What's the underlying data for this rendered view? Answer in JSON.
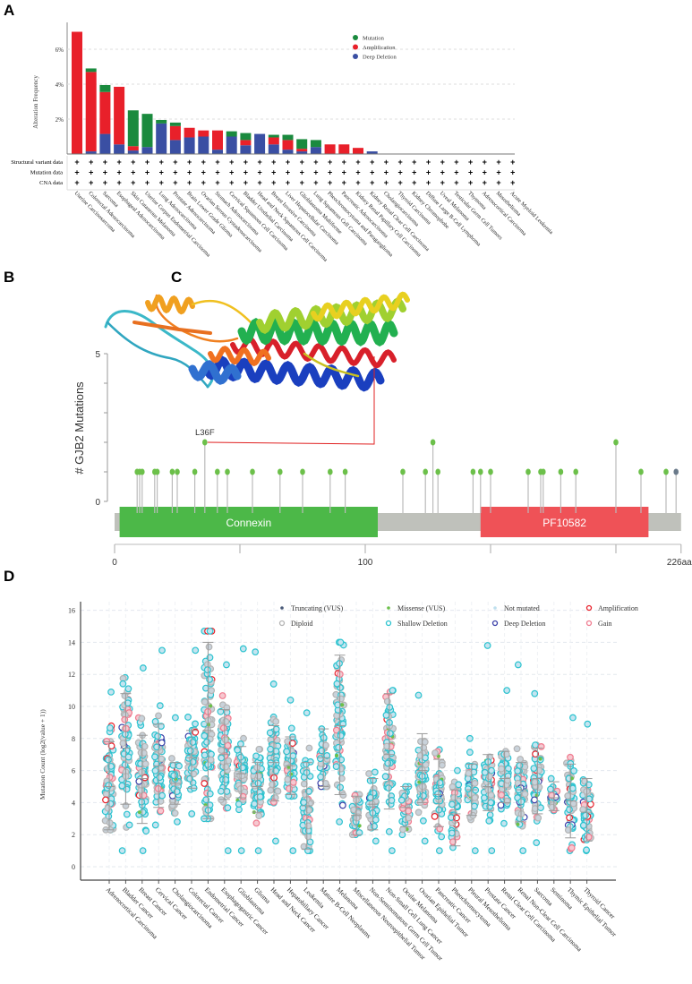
{
  "panels": {
    "a": "A",
    "b": "B",
    "c": "C",
    "d": "D"
  },
  "chart_data": [
    {
      "panel": "A",
      "type": "bar",
      "stacked": true,
      "ylabel": "Alteration Frequency",
      "ylim": [
        0,
        7.2
      ],
      "yticks": [
        "2%",
        "4%",
        "6%"
      ],
      "ytick_values": [
        2,
        4,
        6
      ],
      "grid": true,
      "legend_position": "top-right",
      "categories": [
        "Uterine Carcinosarcoma",
        "Colorectal Adenocarcinoma",
        "Sarcoma",
        "Esophageal Adenocarcinoma",
        "Skin Cutaneous Melanoma",
        "Uterine Corpus Endometrial Carcinoma",
        "Lung Adenocarcinoma",
        "Prostate Adenocarcinoma",
        "Brain Lower Grade Glioma",
        "Ovarian Serous Cystadenocarcinoma",
        "Stomach Adenocarcinoma",
        "Cervical Squamous Cell Carcinoma",
        "Bladder Urothelial Carcinoma",
        "Head and Neck Squamous Cell Carcinoma",
        "Breast Invasive Carcinoma",
        "Liver Hepatocellular Carcinoma",
        "Glioblastoma Multiforme",
        "Lung Squamous Cell Carcinoma",
        "Pheochromocytoma and Paraganglioma",
        "Pancreatic Adenocarcinoma",
        "Kidney Renal Papillary Cell Carcinoma",
        "Kidney Renal Clear Cell Carcinoma",
        "Cholangiocarcinoma",
        "Thyroid Carcinoma",
        "Kidney Chromophobe",
        "Diffuse Large B-Cell Lymphoma",
        "Uveal Melanoma",
        "Testicular Germ Cell Tumors",
        "Thymoma",
        "Adrenocortical Carcinoma",
        "Mesothelioma",
        "Acute Myeloid Leukemia"
      ],
      "series": [
        {
          "name": "Deep Deletion",
          "color": "#3a4fa3",
          "values": [
            0,
            0.15,
            1.15,
            0.55,
            0.2,
            0.4,
            1.75,
            0.8,
            0.95,
            1.0,
            0.25,
            1.0,
            0.5,
            1.15,
            0.55,
            0.25,
            0.15,
            0.4,
            0,
            0,
            0,
            0.15,
            0,
            0,
            0,
            0,
            0,
            0,
            0,
            0,
            0,
            0
          ]
        },
        {
          "name": "Amplification",
          "color": "#e8202a",
          "values": [
            7.0,
            4.55,
            2.4,
            3.3,
            0.25,
            0,
            0,
            0.8,
            0.55,
            0.35,
            1.1,
            0,
            0.3,
            0,
            0.4,
            0.55,
            0.15,
            0,
            0.55,
            0.55,
            0.35,
            0,
            0,
            0,
            0,
            0,
            0,
            0,
            0,
            0,
            0,
            0
          ]
        },
        {
          "name": "Mutation",
          "color": "#1a8a3e",
          "values": [
            0,
            0.2,
            0.4,
            0,
            2.05,
            1.9,
            0.2,
            0.2,
            0,
            0,
            0,
            0.3,
            0.4,
            0,
            0.15,
            0.3,
            0.55,
            0.4,
            0,
            0,
            0,
            0,
            0,
            0,
            0,
            0,
            0,
            0,
            0,
            0,
            0,
            0
          ]
        }
      ],
      "legend": [
        "Mutation",
        "Amplification",
        "Deep Deletion"
      ],
      "data_rows": {
        "labels": [
          "Structural variant data",
          "Mutation data",
          "CNA data"
        ],
        "marker": "+"
      }
    },
    {
      "panel": "B",
      "type": "lollipop",
      "ylabel": "# GJB2 Mutations",
      "ylim": [
        0,
        5
      ],
      "yticks": [
        "0",
        "5"
      ],
      "xlim": [
        0,
        226
      ],
      "xticks": [
        "0",
        "100",
        "226aa"
      ],
      "xtick_values": [
        0,
        100,
        226
      ],
      "annotation": "L36F",
      "mutations": [
        {
          "pos": 9,
          "count": 1
        },
        {
          "pos": 10,
          "count": 1
        },
        {
          "pos": 11,
          "count": 1
        },
        {
          "pos": 16,
          "count": 1
        },
        {
          "pos": 17,
          "count": 1
        },
        {
          "pos": 23,
          "count": 1
        },
        {
          "pos": 25,
          "count": 1
        },
        {
          "pos": 32,
          "count": 1
        },
        {
          "pos": 36,
          "count": 2,
          "label": "L36F"
        },
        {
          "pos": 41,
          "count": 1
        },
        {
          "pos": 45,
          "count": 1
        },
        {
          "pos": 55,
          "count": 1
        },
        {
          "pos": 66,
          "count": 1
        },
        {
          "pos": 75,
          "count": 1
        },
        {
          "pos": 86,
          "count": 1
        },
        {
          "pos": 92,
          "count": 1
        },
        {
          "pos": 115,
          "count": 1
        },
        {
          "pos": 124,
          "count": 1
        },
        {
          "pos": 127,
          "count": 2
        },
        {
          "pos": 129,
          "count": 1
        },
        {
          "pos": 143,
          "count": 1
        },
        {
          "pos": 146,
          "count": 1
        },
        {
          "pos": 150,
          "count": 1
        },
        {
          "pos": 165,
          "count": 1
        },
        {
          "pos": 170,
          "count": 1
        },
        {
          "pos": 171,
          "count": 1
        },
        {
          "pos": 178,
          "count": 1
        },
        {
          "pos": 184,
          "count": 1
        },
        {
          "pos": 200,
          "count": 2
        },
        {
          "pos": 210,
          "count": 1
        },
        {
          "pos": 220,
          "count": 1
        },
        {
          "pos": 224,
          "count": 1,
          "type": "truncating"
        }
      ],
      "domains": [
        {
          "name": "Connexin",
          "start": 2,
          "end": 105,
          "color": "#4cb848"
        },
        {
          "name": "PF10582",
          "start": 146,
          "end": 213,
          "color": "#ef5257"
        }
      ],
      "colors": {
        "missense": "#6cc04a",
        "truncating": "#6a7a8a",
        "backbone": "#bfc1bb"
      }
    },
    {
      "panel": "D",
      "type": "scatter",
      "ylabel": "Mutation Count (log2(value + 1))",
      "ylim": [
        -0.8,
        16.4
      ],
      "yticks": [
        "0",
        "2",
        "4",
        "6",
        "8",
        "10",
        "12",
        "14",
        "16"
      ],
      "ytick_values": [
        0,
        2,
        4,
        6,
        8,
        10,
        12,
        14,
        16
      ],
      "grid": true,
      "legend_position": "top-right",
      "legend": [
        {
          "label": "Truncating (VUS)",
          "color": "#4a5a78",
          "shape": "dot"
        },
        {
          "label": "Missense (VUS)",
          "color": "#6cc04a",
          "shape": "dot"
        },
        {
          "label": "Not mutated",
          "color": "#bfe0ee",
          "shape": "dot"
        },
        {
          "label": "Amplification",
          "color": "#e8202a",
          "shape": "ring"
        },
        {
          "label": "Diploid",
          "color": "#b4b4b4",
          "shape": "ring"
        },
        {
          "label": "Shallow Deletion",
          "color": "#2bc3cf",
          "shape": "ring"
        },
        {
          "label": "Deep Deletion",
          "color": "#3a3fa8",
          "shape": "ring"
        },
        {
          "label": "Gain",
          "color": "#f07b8f",
          "shape": "ring"
        }
      ],
      "categories": [
        "Adrenocortical Carcinoma",
        "Bladder Cancer",
        "Breast Cancer",
        "Cervical Cancer",
        "Cholangiocarcinoma",
        "Colorectal Cancer",
        "Endometrial Cancer",
        "Esophagogastric Cancer",
        "Glioblastoma",
        "Glioma",
        "Head and Neck Cancer",
        "Hepatobiliary Cancer",
        "Leukemia",
        "Mature B-Cell Neoplasms",
        "Melanoma",
        "Miscellaneous Neuroepithelial Tumor",
        "Non-Seminomatous Germ Cell Tumor",
        "Non-Small Cell Lung Cancer",
        "Ocular Melanoma",
        "Ovarian Epithelial Tumor",
        "Pancreatic Cancer",
        "Pheochromocytoma",
        "Pleural Mesothelioma",
        "Prostate Cancer",
        "Renal Clear Cell Carcinoma",
        "Renal Non-Clear Cell Carcinoma",
        "Sarcoma",
        "Seminoma",
        "Thymic Epithelial Tumor",
        "Thyroid Cancer"
      ],
      "summary_fields": [
        "min",
        "max",
        "whisker_low",
        "whisker_high",
        "mean"
      ],
      "summary": [
        [
          2.3,
          10.9,
          2.3,
          7.8,
          5.0
        ],
        [
          1,
          11.8,
          3.9,
          10.8,
          7.4
        ],
        [
          1,
          12.4,
          2.7,
          8.2,
          5.5
        ],
        [
          2.6,
          13.5,
          3.7,
          8.9,
          6.3
        ],
        [
          2.8,
          9.3,
          3.9,
          6.5,
          5.2
        ],
        [
          3.3,
          13.5,
          4.9,
          8.5,
          6.8
        ],
        [
          3,
          14.7,
          3,
          14,
          8.5
        ],
        [
          1,
          12.6,
          4.2,
          9.8,
          7
        ],
        [
          1,
          13.6,
          4.3,
          7.5,
          5.8
        ],
        [
          1,
          13.4,
          3.4,
          6.5,
          5
        ],
        [
          1.6,
          11.4,
          4.1,
          8.8,
          6.5
        ],
        [
          1,
          10.4,
          4.5,
          8.1,
          6.3
        ],
        [
          1,
          9.6,
          1.1,
          6.5,
          3.8
        ],
        [
          5,
          8.6,
          5,
          8.6,
          6.8
        ],
        [
          2.8,
          14,
          4.5,
          13.2,
          8.8
        ],
        [
          2,
          4.5,
          2,
          4.4,
          3.2
        ],
        [
          1.6,
          5.9,
          2.3,
          5.5,
          3.9
        ],
        [
          1,
          11,
          3.6,
          10.8,
          7
        ],
        [
          2,
          5,
          2.5,
          5,
          3.7
        ],
        [
          1.6,
          10.7,
          4,
          8.3,
          6
        ],
        [
          1,
          7.3,
          2.5,
          6.7,
          4.5
        ],
        [
          1.2,
          6,
          1.3,
          4.8,
          3.3
        ],
        [
          1,
          8,
          3.2,
          6.4,
          4.8
        ],
        [
          1,
          13.8,
          3.5,
          7,
          5
        ],
        [
          2.7,
          11,
          4,
          7.2,
          5.5
        ],
        [
          1,
          12.6,
          2.8,
          6.5,
          4.8
        ],
        [
          1.5,
          10.8,
          3.3,
          7.4,
          5.5
        ],
        [
          3.5,
          5.5,
          3.5,
          5.3,
          4.3
        ],
        [
          1,
          9.3,
          1.8,
          6.4,
          4.1
        ],
        [
          1,
          8.9,
          1.6,
          5.5,
          3.4
        ]
      ]
    }
  ]
}
